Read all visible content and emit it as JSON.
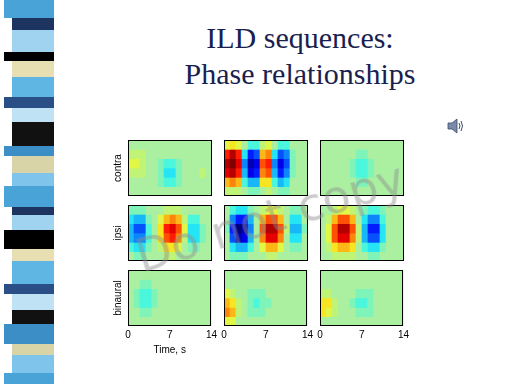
{
  "slide": {
    "title": [
      "ILD sequences:",
      "Phase relationships"
    ],
    "watermark": "Do not copy"
  },
  "chart_data": [
    {
      "type": "heatmap",
      "ylabel": "contra",
      "xlim": [
        0,
        14
      ],
      "tick_labels": false,
      "color_range": [
        -1,
        1
      ],
      "cells": [
        [
          0,
          0,
          0,
          0,
          0,
          0,
          0,
          0,
          0,
          0,
          0,
          0,
          0,
          0
        ],
        [
          0.1,
          0.1,
          0.1,
          0,
          0,
          0,
          0,
          0,
          0,
          0,
          0,
          0,
          0,
          0
        ],
        [
          0.2,
          0.2,
          0.1,
          0,
          0,
          -0.1,
          -0.2,
          -0.2,
          -0.1,
          0,
          0,
          0,
          0,
          0
        ],
        [
          0.1,
          0.1,
          0.1,
          0,
          0,
          -0.1,
          -0.3,
          -0.3,
          -0.1,
          0,
          0,
          0,
          0.1,
          0
        ],
        [
          0,
          0,
          0,
          0,
          0,
          -0.1,
          -0.2,
          -0.2,
          -0.1,
          0,
          0,
          0,
          0,
          0
        ],
        [
          0,
          0,
          0,
          0,
          0,
          0,
          0,
          0,
          0,
          0,
          0,
          0,
          0,
          0
        ]
      ]
    },
    {
      "type": "heatmap",
      "xlim": [
        0,
        14
      ],
      "tick_labels": false,
      "color_range": [
        -1,
        1
      ],
      "cells": [
        [
          0.2,
          0.3,
          0.2,
          0,
          -0.2,
          -0.2,
          0.1,
          0.2,
          0,
          -0.2,
          -0.2,
          0,
          0,
          0
        ],
        [
          0.7,
          0.9,
          0.7,
          -0.3,
          -0.7,
          -0.6,
          0.4,
          0.5,
          -0.3,
          -0.6,
          -0.5,
          -0.1,
          0,
          0
        ],
        [
          0.9,
          1.0,
          0.8,
          -0.5,
          -0.9,
          -0.8,
          0.6,
          0.7,
          -0.5,
          -0.8,
          -0.6,
          -0.1,
          0,
          0
        ],
        [
          0.8,
          0.9,
          0.7,
          -0.4,
          -0.8,
          -0.7,
          0.5,
          0.6,
          -0.4,
          -0.7,
          -0.5,
          -0.1,
          0,
          0
        ],
        [
          0.4,
          0.5,
          0.4,
          -0.2,
          -0.4,
          -0.4,
          0.3,
          0.3,
          -0.2,
          -0.4,
          -0.3,
          0,
          0,
          0
        ],
        [
          0.1,
          0.1,
          0.1,
          0,
          -0.1,
          -0.1,
          0,
          0.1,
          0,
          -0.1,
          -0.1,
          0,
          0,
          0
        ]
      ]
    },
    {
      "type": "heatmap",
      "xlim": [
        0,
        14
      ],
      "tick_labels": false,
      "color_range": [
        -1,
        1
      ],
      "cells": [
        [
          0,
          0,
          0,
          0,
          0,
          0,
          0,
          0,
          0,
          0,
          0,
          0,
          0,
          0
        ],
        [
          0,
          0,
          0,
          0,
          0,
          0,
          -0.1,
          -0.1,
          0,
          0,
          0,
          0,
          0,
          0
        ],
        [
          0,
          0,
          0,
          0,
          0,
          -0.1,
          -0.2,
          -0.2,
          -0.1,
          0,
          0,
          0,
          0,
          0
        ],
        [
          0,
          0,
          0,
          0,
          0,
          -0.1,
          -0.2,
          -0.2,
          -0.1,
          0,
          0,
          0,
          0,
          0
        ],
        [
          0,
          0,
          0,
          0,
          0,
          0,
          -0.1,
          -0.1,
          0,
          0,
          0,
          0,
          0,
          0
        ],
        [
          0,
          0,
          0,
          0,
          0,
          0,
          0,
          0,
          0,
          0,
          0,
          0,
          0,
          0
        ]
      ]
    },
    {
      "type": "heatmap",
      "ylabel": "ipsi",
      "xlim": [
        0,
        14
      ],
      "tick_labels": false,
      "color_range": [
        -1,
        1
      ],
      "cells": [
        [
          -0.1,
          -0.1,
          -0.1,
          0,
          0,
          0,
          0.1,
          0.1,
          0.1,
          0,
          0,
          0,
          0,
          0
        ],
        [
          -0.3,
          -0.4,
          -0.4,
          -0.1,
          0,
          0.2,
          0.4,
          0.5,
          0.4,
          0.1,
          -0.2,
          -0.2,
          0,
          0
        ],
        [
          -0.4,
          -0.6,
          -0.6,
          -0.2,
          0,
          0.3,
          0.7,
          0.8,
          0.6,
          0.2,
          -0.3,
          -0.3,
          -0.1,
          0
        ],
        [
          -0.4,
          -0.5,
          -0.5,
          -0.2,
          0,
          0.3,
          0.6,
          0.7,
          0.5,
          0.1,
          -0.3,
          -0.3,
          -0.1,
          0
        ],
        [
          -0.2,
          -0.3,
          -0.3,
          -0.1,
          0,
          0.1,
          0.3,
          0.3,
          0.2,
          0,
          -0.1,
          -0.1,
          0,
          0
        ],
        [
          0,
          -0.1,
          -0.1,
          0,
          0,
          0,
          0.1,
          0.1,
          0,
          0,
          0,
          0,
          0,
          0
        ]
      ]
    },
    {
      "type": "heatmap",
      "xlim": [
        0,
        14
      ],
      "tick_labels": false,
      "color_range": [
        -1,
        1
      ],
      "cells": [
        [
          0,
          -0.2,
          -0.3,
          -0.3,
          -0.1,
          0,
          0.1,
          0.2,
          0.2,
          0.1,
          0,
          -0.1,
          -0.1,
          0
        ],
        [
          0,
          -0.5,
          -0.7,
          -0.7,
          -0.4,
          0,
          0.4,
          0.6,
          0.6,
          0.4,
          0,
          -0.3,
          -0.3,
          0
        ],
        [
          -0.1,
          -0.7,
          -1.0,
          -0.9,
          -0.5,
          0,
          0.6,
          0.9,
          0.9,
          0.6,
          0.1,
          -0.4,
          -0.4,
          -0.1
        ],
        [
          0,
          -0.6,
          -0.9,
          -0.8,
          -0.4,
          0,
          0.5,
          0.8,
          0.8,
          0.5,
          0,
          -0.3,
          -0.3,
          0
        ],
        [
          0,
          -0.3,
          -0.4,
          -0.4,
          -0.2,
          0,
          0.2,
          0.4,
          0.4,
          0.2,
          0,
          -0.1,
          -0.1,
          0
        ],
        [
          0,
          -0.1,
          -0.1,
          -0.1,
          0,
          0,
          0,
          0.1,
          0.1,
          0,
          0,
          0,
          0,
          0
        ]
      ]
    },
    {
      "type": "heatmap",
      "xlim": [
        0,
        14
      ],
      "tick_labels": false,
      "color_range": [
        -1,
        1
      ],
      "cells": [
        [
          0,
          0,
          0.1,
          0.2,
          0.2,
          0.1,
          0,
          -0.1,
          -0.2,
          -0.2,
          -0.1,
          0,
          0,
          0
        ],
        [
          0,
          0.1,
          0.4,
          0.6,
          0.6,
          0.4,
          0,
          -0.3,
          -0.5,
          -0.5,
          -0.2,
          0,
          0,
          0
        ],
        [
          0,
          0.2,
          0.6,
          0.9,
          0.9,
          0.6,
          0.1,
          -0.4,
          -0.7,
          -0.7,
          -0.3,
          0,
          0,
          0
        ],
        [
          0,
          0.2,
          0.6,
          0.8,
          0.8,
          0.5,
          0.1,
          -0.4,
          -0.6,
          -0.6,
          -0.3,
          0,
          0,
          0
        ],
        [
          0,
          0.1,
          0.3,
          0.4,
          0.4,
          0.3,
          0,
          -0.2,
          -0.3,
          -0.3,
          -0.1,
          0,
          0,
          0
        ],
        [
          0,
          0,
          0.1,
          0.1,
          0.1,
          0.1,
          0,
          0,
          -0.1,
          -0.1,
          0,
          0,
          0,
          0
        ]
      ]
    },
    {
      "type": "heatmap",
      "ylabel": "binaural",
      "xlabel": "Time, s",
      "xlim": [
        0,
        14
      ],
      "xticks": [
        0,
        7,
        14
      ],
      "tick_labels": "x",
      "color_range": [
        -1,
        1
      ],
      "cells": [
        [
          0,
          0,
          0,
          0,
          0,
          0,
          0,
          0,
          0,
          0,
          0,
          0,
          0,
          0
        ],
        [
          0,
          0,
          -0.1,
          -0.1,
          0,
          0,
          0,
          0,
          0,
          0,
          0,
          0,
          0,
          0
        ],
        [
          0,
          -0.1,
          -0.2,
          -0.2,
          -0.1,
          0,
          0,
          0,
          0,
          0,
          0,
          0,
          0,
          0
        ],
        [
          0,
          -0.1,
          -0.2,
          -0.2,
          -0.1,
          0,
          0,
          0,
          0,
          0,
          0,
          0,
          0,
          0
        ],
        [
          0,
          0,
          -0.1,
          -0.1,
          0,
          0,
          0,
          0,
          0,
          0,
          0,
          0,
          0,
          0
        ],
        [
          0,
          0,
          0,
          0,
          0,
          0,
          0,
          0,
          0,
          0,
          0,
          0,
          0,
          0
        ]
      ]
    },
    {
      "type": "heatmap",
      "xlim": [
        0,
        14
      ],
      "xticks": [
        0,
        7,
        14
      ],
      "tick_labels": "x",
      "color_range": [
        -1,
        1
      ],
      "cells": [
        [
          0,
          0,
          0,
          0,
          0,
          0,
          0,
          0,
          0,
          0,
          0,
          0,
          0,
          0
        ],
        [
          0,
          0,
          0,
          0,
          0,
          0,
          0,
          0,
          0,
          0,
          0,
          0,
          0,
          0
        ],
        [
          0.2,
          0.1,
          0,
          0,
          -0.1,
          -0.1,
          -0.1,
          0,
          0,
          0,
          0,
          0,
          0,
          0
        ],
        [
          0.4,
          0.3,
          0.1,
          0,
          -0.1,
          -0.2,
          -0.1,
          -0.1,
          0,
          0,
          0,
          0,
          0,
          0
        ],
        [
          0.5,
          0.4,
          0.1,
          0,
          -0.1,
          -0.1,
          -0.1,
          0,
          0,
          0,
          0,
          0,
          0,
          0
        ],
        [
          0.2,
          0.2,
          0,
          0,
          0,
          0,
          0,
          0,
          0,
          0,
          0,
          0,
          0,
          0
        ]
      ]
    },
    {
      "type": "heatmap",
      "xlim": [
        0,
        14
      ],
      "xticks": [
        0,
        7,
        14
      ],
      "tick_labels": "x",
      "color_range": [
        -1,
        1
      ],
      "cells": [
        [
          0,
          0,
          0,
          0,
          0,
          0,
          0,
          0,
          0,
          0,
          0,
          0,
          0,
          0
        ],
        [
          0,
          0,
          0,
          0,
          0,
          0,
          0,
          0,
          0,
          0,
          0,
          0,
          0,
          0
        ],
        [
          0.1,
          0.1,
          0,
          0,
          0,
          0,
          -0.1,
          -0.1,
          -0.1,
          0,
          0,
          0,
          0,
          0
        ],
        [
          0.3,
          0.3,
          0.1,
          0,
          0,
          -0.1,
          -0.2,
          -0.2,
          -0.1,
          0,
          0,
          0,
          0,
          0
        ],
        [
          0.3,
          0.2,
          0.1,
          0,
          0,
          0,
          -0.1,
          -0.1,
          -0.1,
          0,
          0,
          0,
          0,
          0
        ],
        [
          0,
          0,
          0,
          0,
          0,
          0,
          0,
          0,
          0,
          0,
          0,
          0,
          0,
          0
        ]
      ]
    }
  ]
}
